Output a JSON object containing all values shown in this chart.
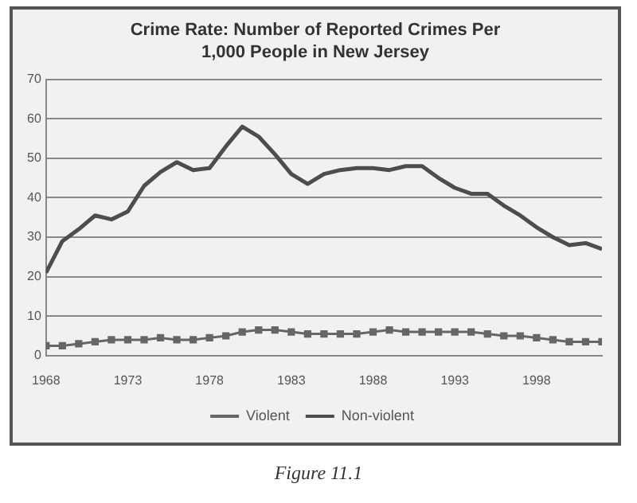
{
  "chart_data": {
    "type": "line",
    "title": "Crime Rate: Number of Reported Crimes Per 1,000 People in New Jersey",
    "x": [
      1968,
      1969,
      1970,
      1971,
      1972,
      1973,
      1974,
      1975,
      1976,
      1977,
      1978,
      1979,
      1980,
      1981,
      1982,
      1983,
      1984,
      1985,
      1986,
      1987,
      1988,
      1989,
      1990,
      1991,
      1992,
      1993,
      1994,
      1995,
      1996,
      1997,
      1998,
      1999,
      2000,
      2001,
      2002
    ],
    "series": [
      {
        "name": "Violent",
        "color": "#666666",
        "marker": "square",
        "values": [
          2.5,
          2.5,
          3,
          3.5,
          4,
          4,
          4,
          4.5,
          4,
          4,
          4.5,
          5,
          6,
          6.5,
          6.5,
          6,
          5.5,
          5.5,
          5.5,
          5.5,
          6,
          6.5,
          6,
          6,
          6,
          6,
          6,
          5.5,
          5,
          5,
          4.5,
          4,
          3.5,
          3.5,
          3.5
        ]
      },
      {
        "name": "Non-violent",
        "color": "#4d4d4d",
        "marker": "none",
        "values": [
          21,
          29,
          32,
          35.5,
          34.5,
          36.5,
          43,
          46.5,
          49,
          47,
          47.5,
          53,
          58,
          55.5,
          51,
          46,
          43.5,
          46,
          47,
          47.5,
          47.5,
          47,
          48,
          48,
          45,
          42.5,
          41,
          41,
          38,
          35.5,
          32.5,
          30,
          28,
          28.5,
          27
        ]
      }
    ],
    "xlim": [
      1968,
      2002
    ],
    "xticks": [
      1968,
      1973,
      1978,
      1983,
      1988,
      1993,
      1998
    ],
    "ylim": [
      0,
      70
    ],
    "yticks": [
      0,
      10,
      20,
      30,
      40,
      50,
      60,
      70
    ],
    "grid": "y",
    "legend": "bottom",
    "annotations": [
      "Figure 11.1"
    ]
  }
}
